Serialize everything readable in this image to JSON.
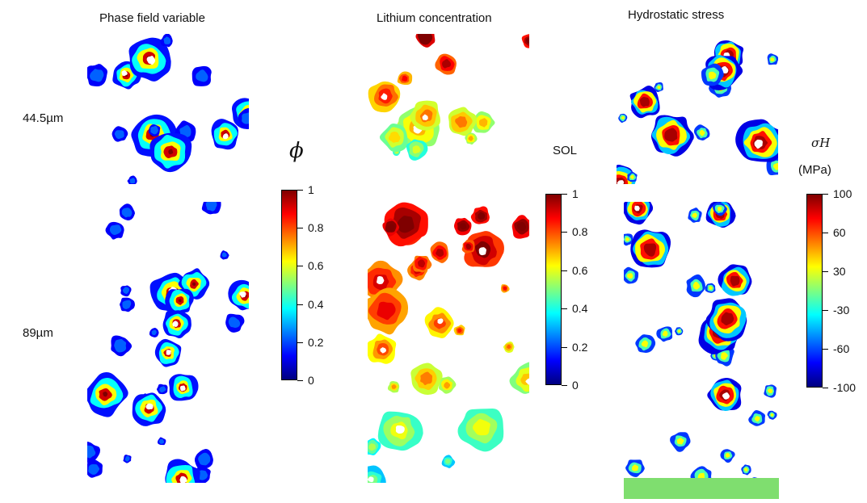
{
  "columns": [
    {
      "title": "Phase field variable",
      "colorbar_title": "ϕ",
      "mode": "phi",
      "ticks": [
        "1",
        "0.8",
        "0.6",
        "0.4",
        "0.2",
        "0"
      ]
    },
    {
      "title": "Lithium concentration",
      "colorbar_title": "SOL",
      "mode": "li",
      "ticks": [
        "1",
        "0.8",
        "0.6",
        "0.4",
        "0.2",
        "0"
      ]
    },
    {
      "title": "Hydrostatic stress",
      "colorbar_title": "σH",
      "colorbar_unit": "(MPa)",
      "mode": "stress",
      "ticks": [
        "100",
        "60",
        "30",
        "-30",
        "-60",
        "-100"
      ]
    }
  ],
  "rows": [
    {
      "label": "44.5µm"
    },
    {
      "label": "89µm"
    }
  ],
  "colormap": [
    "#00007f",
    "#0000ff",
    "#007fff",
    "#00ffff",
    "#7fff7f",
    "#ffff00",
    "#ff7f00",
    "#ff0000",
    "#7f0000"
  ]
}
